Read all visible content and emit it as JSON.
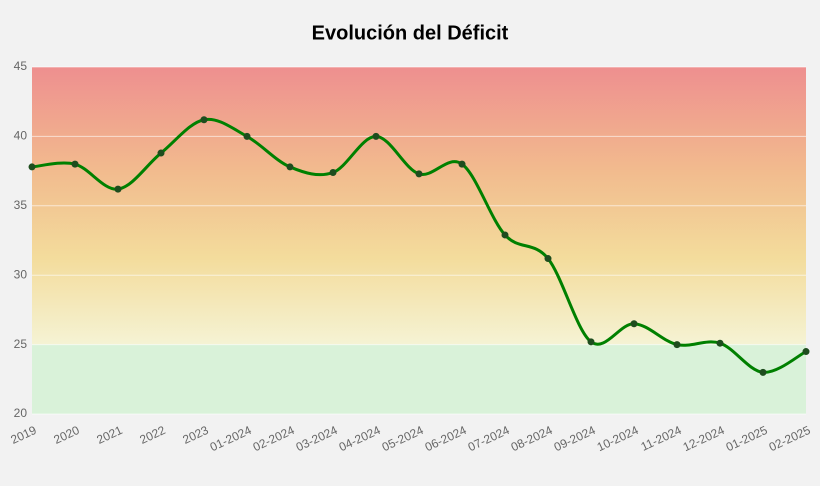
{
  "chart_data": {
    "type": "line",
    "title": "Evolución del Déficit",
    "categories": [
      "2019",
      "2020",
      "2021",
      "2022",
      "2023",
      "01-2024",
      "02-2024",
      "03-2024",
      "04-2024",
      "05-2024",
      "06-2024",
      "07-2024",
      "08-2024",
      "09-2024",
      "10-2024",
      "11-2024",
      "12-2024",
      "01-2025",
      "02-2025"
    ],
    "values": [
      37.8,
      38.0,
      36.2,
      38.8,
      41.2,
      40.0,
      37.8,
      37.4,
      40.0,
      37.3,
      38.0,
      32.9,
      31.2,
      25.2,
      26.5,
      25.0,
      25.1,
      23.0,
      24.5
    ],
    "color": "#008000",
    "marker_color": "#1e4d1e",
    "ylim": [
      20,
      45
    ],
    "yticks": [
      20,
      25,
      30,
      35,
      40,
      45
    ],
    "grid": true
  }
}
